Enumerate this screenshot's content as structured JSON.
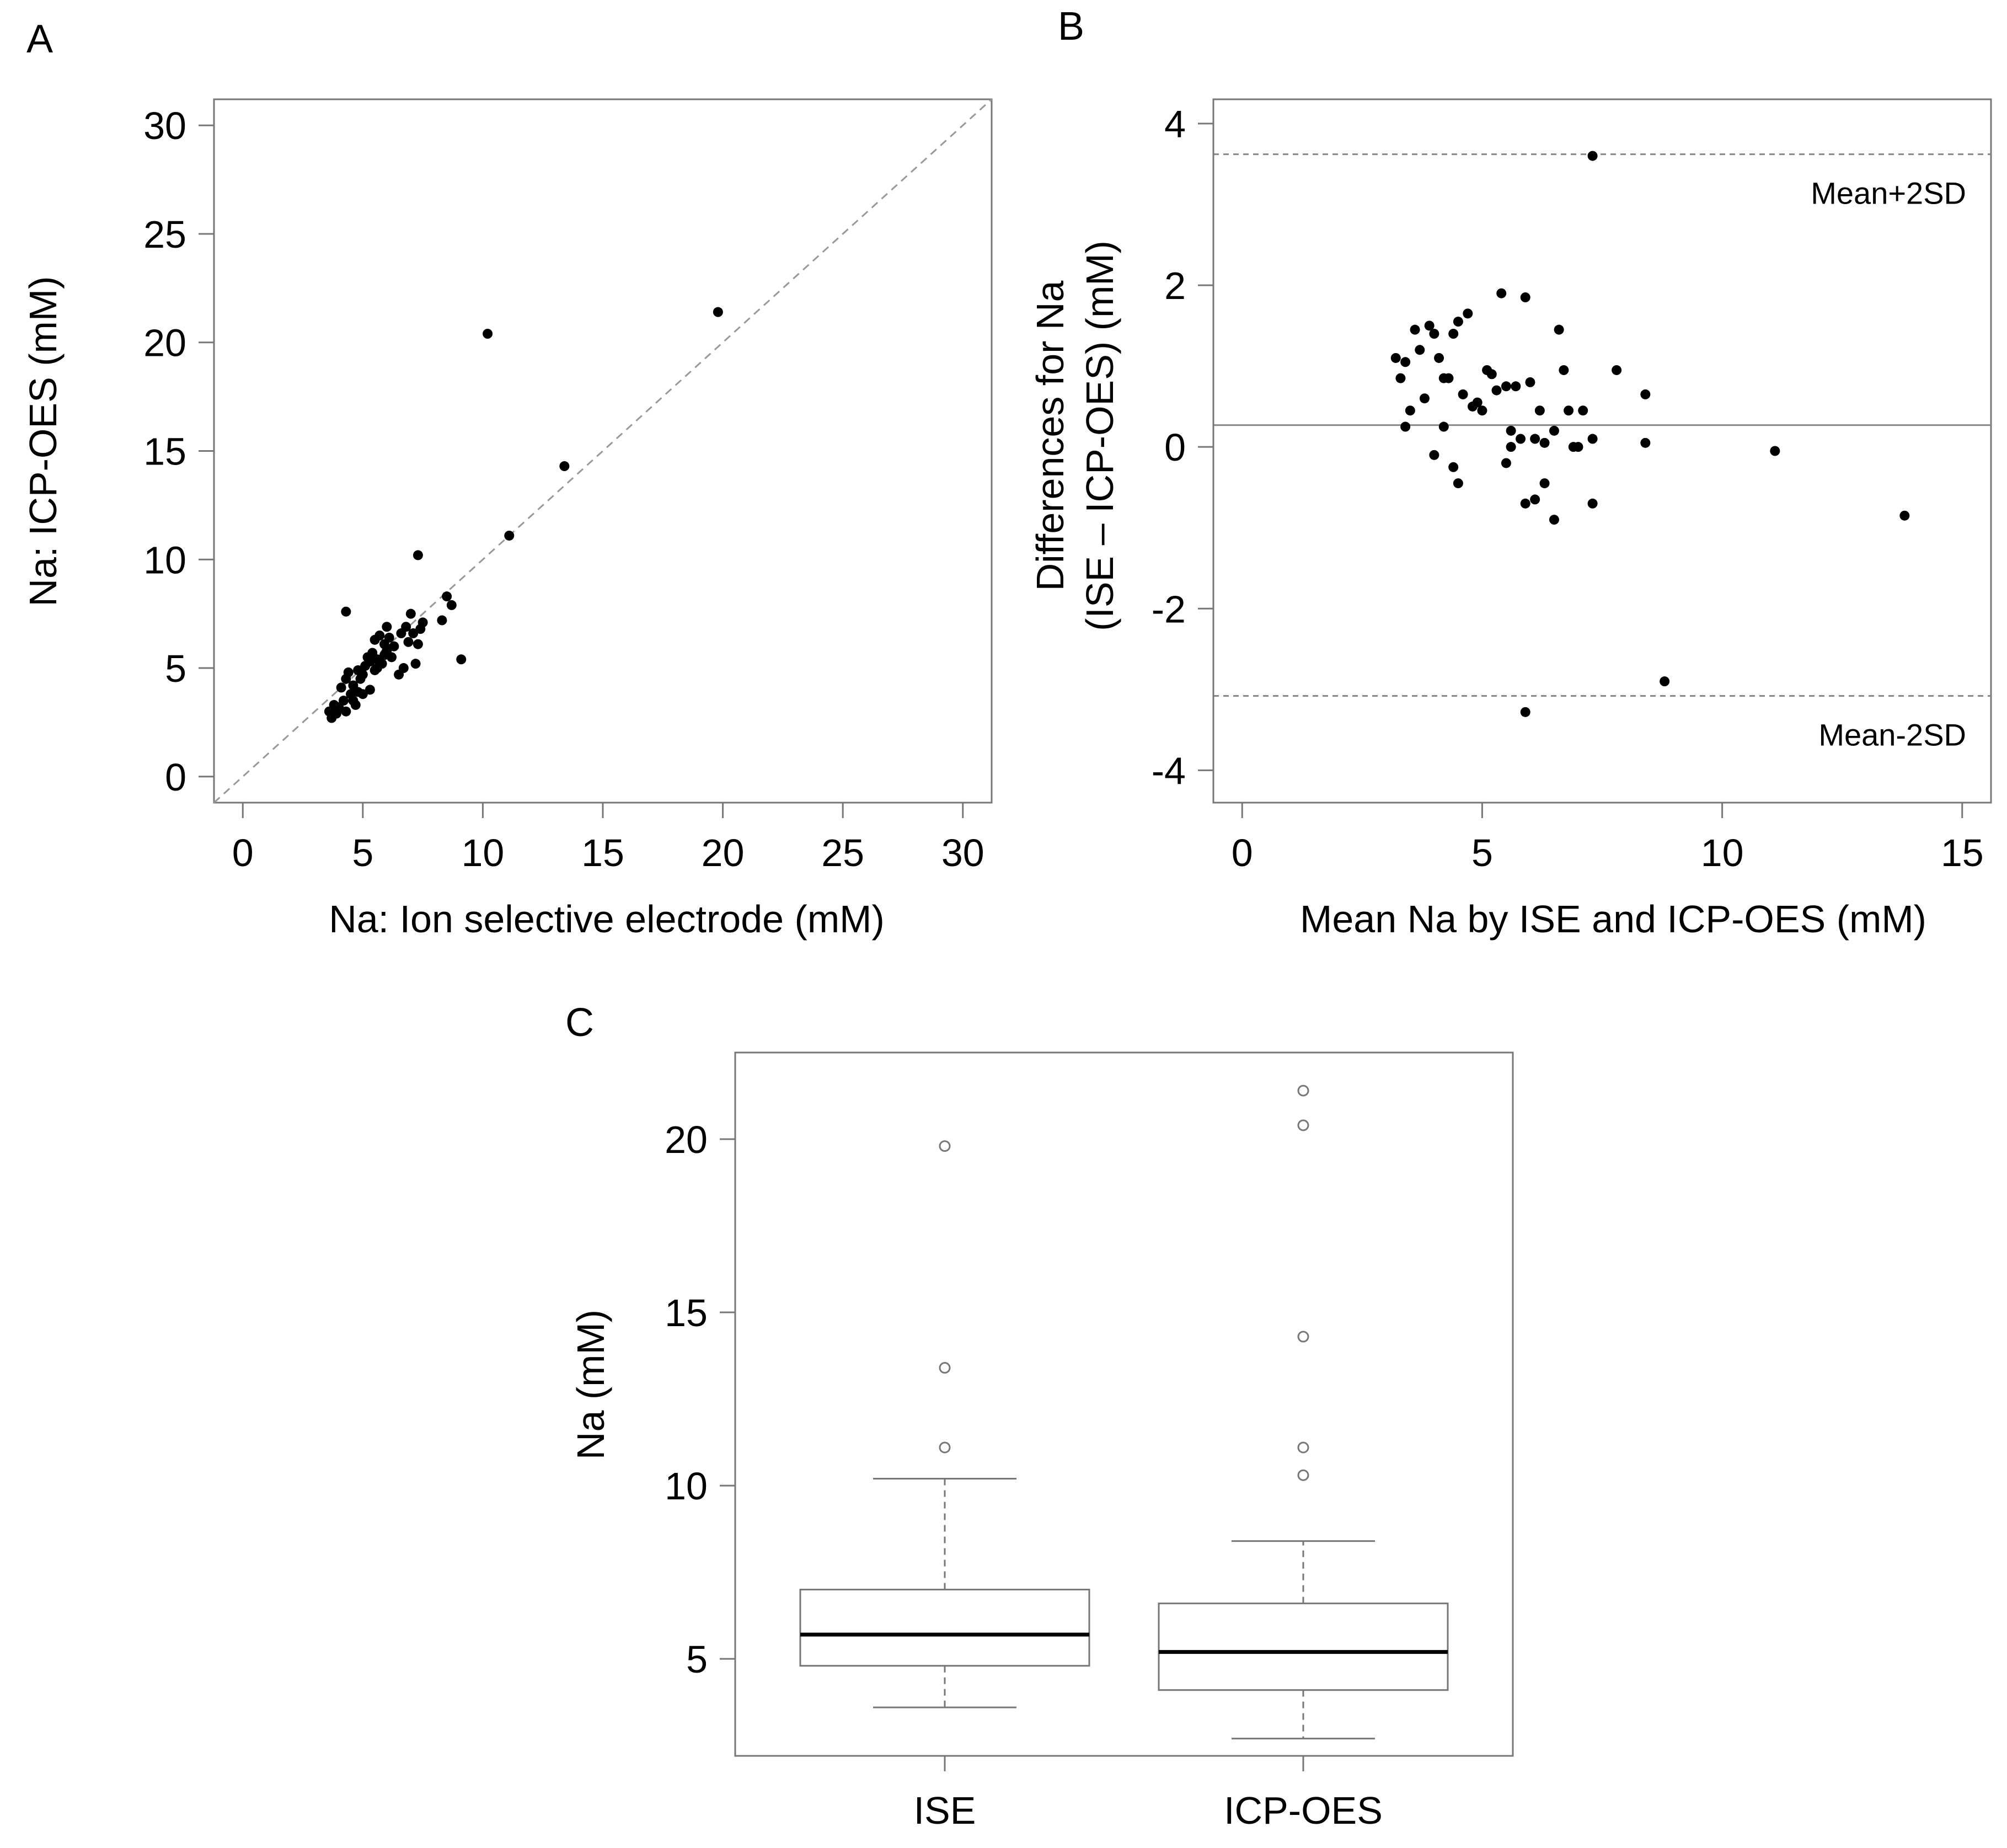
{
  "chart_data": [
    {
      "panel": "A",
      "type": "scatter",
      "xlabel": "Na: Ion selective electrode (mM)",
      "ylabel": "Na: ICP-OES (mM)",
      "xlim": [
        -1.2,
        31.2
      ],
      "ylim": [
        -1.2,
        31.2
      ],
      "xticks": [
        0,
        5,
        10,
        15,
        20,
        25,
        30
      ],
      "yticks": [
        0,
        5,
        10,
        15,
        20,
        25,
        30
      ],
      "reference_line": "identity (y = x), dashed",
      "points": {
        "x": [
          3.6,
          3.7,
          3.8,
          3.9,
          4.0,
          4.1,
          4.2,
          4.3,
          4.3,
          4.4,
          4.5,
          4.6,
          4.6,
          4.7,
          4.8,
          4.8,
          4.9,
          5.0,
          5.0,
          5.1,
          5.2,
          5.3,
          5.3,
          5.4,
          5.5,
          5.5,
          5.6,
          5.6,
          5.7,
          5.8,
          5.9,
          5.9,
          6.0,
          6.0,
          6.1,
          6.2,
          6.3,
          6.5,
          6.6,
          6.7,
          6.8,
          6.9,
          7.0,
          7.1,
          7.2,
          7.3,
          7.4,
          7.5,
          8.3,
          8.5,
          8.7,
          9.1,
          4.3,
          7.3,
          10.2,
          11.1,
          13.4,
          19.8
        ],
        "y": [
          3.0,
          2.7,
          3.3,
          2.9,
          3.2,
          4.1,
          3.5,
          3.0,
          4.5,
          4.8,
          3.8,
          3.5,
          4.2,
          3.3,
          4.9,
          3.9,
          4.5,
          4.7,
          3.8,
          5.1,
          5.5,
          4.0,
          5.3,
          5.7,
          4.9,
          6.3,
          5.0,
          5.4,
          6.5,
          5.2,
          5.6,
          6.1,
          5.8,
          6.9,
          6.4,
          5.5,
          6.0,
          4.7,
          6.6,
          5.0,
          6.9,
          6.2,
          7.5,
          6.6,
          5.2,
          6.1,
          6.8,
          7.1,
          7.2,
          8.3,
          7.9,
          5.4,
          7.6,
          10.2,
          20.4,
          11.1,
          14.3,
          21.4
        ]
      }
    },
    {
      "panel": "B",
      "type": "scatter",
      "xlabel": "Mean Na by ISE and ICP-OES (mM)",
      "ylabel_line1": "Differences for Na",
      "ylabel_line2": "(ISE – ICP-OES) (mM)",
      "xlim": [
        -0.6,
        15.6
      ],
      "ylim": [
        -4.4,
        4.3
      ],
      "xticks": [
        0,
        5,
        10,
        15
      ],
      "yticks": [
        -4,
        -2,
        0,
        2,
        4
      ],
      "mean_line": 0.27,
      "upper_limit": 3.62,
      "lower_limit": -3.08,
      "upper_label": "Mean+2SD",
      "lower_label": "Mean-2SD",
      "points": {
        "x": [
          3.2,
          3.4,
          3.3,
          3.5,
          3.6,
          3.7,
          3.8,
          3.9,
          4.0,
          4.1,
          4.2,
          4.2,
          4.3,
          4.4,
          4.5,
          4.6,
          4.7,
          4.8,
          4.9,
          5.0,
          5.1,
          5.2,
          5.3,
          5.4,
          5.5,
          5.6,
          5.7,
          5.8,
          5.9,
          6.0,
          6.1,
          6.2,
          6.3,
          6.5,
          6.6,
          6.7,
          6.8,
          6.9,
          7.0,
          7.1,
          7.3,
          7.8,
          8.4,
          8.4,
          11.1,
          13.8,
          3.4,
          4.0,
          4.4,
          4.5,
          5.5,
          5.6,
          5.9,
          6.1,
          6.3,
          6.5,
          7.3,
          8.8,
          5.9,
          7.3
        ],
        "y": [
          1.1,
          1.05,
          0.85,
          0.45,
          1.45,
          1.2,
          0.6,
          1.5,
          1.4,
          1.1,
          0.85,
          0.25,
          0.85,
          1.4,
          1.55,
          0.65,
          1.65,
          0.5,
          0.55,
          0.45,
          0.95,
          0.9,
          0.7,
          1.9,
          0.75,
          0.2,
          0.75,
          0.1,
          1.85,
          0.8,
          0.1,
          0.45,
          0.05,
          0.2,
          1.45,
          0.95,
          0.45,
          0.0,
          0.0,
          0.45,
          0.1,
          0.95,
          0.65,
          0.05,
          -0.05,
          -0.85,
          0.25,
          -0.1,
          -0.25,
          -0.45,
          -0.2,
          0.0,
          -0.7,
          -0.65,
          -0.45,
          -0.9,
          -0.7,
          -2.9,
          -3.28,
          3.6
        ]
      }
    },
    {
      "panel": "C",
      "type": "boxplot",
      "ylabel": "Na (mM)",
      "ylim": [
        2.2,
        22.5
      ],
      "yticks": [
        5,
        10,
        15,
        20
      ],
      "categories": [
        "ISE",
        "ICP-OES"
      ],
      "boxes": [
        {
          "name": "ISE",
          "whisker_low": 3.6,
          "q1": 4.8,
          "median": 5.7,
          "q3": 7.0,
          "whisker_high": 10.2,
          "outliers": [
            11.1,
            13.4,
            19.8
          ]
        },
        {
          "name": "ICP-OES",
          "whisker_low": 2.7,
          "q1": 4.1,
          "median": 5.2,
          "q3": 6.6,
          "whisker_high": 8.4,
          "outliers": [
            10.3,
            11.1,
            14.3,
            20.4,
            21.4
          ]
        }
      ]
    }
  ]
}
